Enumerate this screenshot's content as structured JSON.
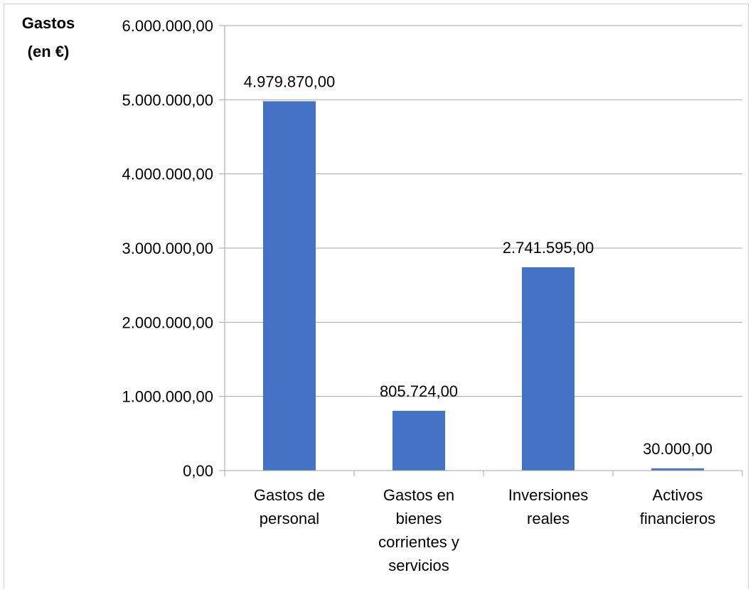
{
  "chart_data": {
    "type": "bar",
    "ylabel_lines": [
      "Gastos",
      "(en €)"
    ],
    "categories": [
      [
        "Gastos de",
        "personal"
      ],
      [
        "Gastos en",
        "bienes",
        "corrientes y",
        "servicios"
      ],
      [
        "Inversiones",
        "reales"
      ],
      [
        "Activos",
        "financieros"
      ]
    ],
    "values": [
      4979870,
      805724,
      2741595,
      30000
    ],
    "data_labels": [
      "4.979.870,00",
      "805.724,00",
      "2.741.595,00",
      "30.000,00"
    ],
    "ylim": [
      0,
      6000000
    ],
    "yticks": [
      0,
      1000000,
      2000000,
      3000000,
      4000000,
      5000000,
      6000000
    ],
    "ytick_labels": [
      "0,00",
      "1.000.000,00",
      "2.000.000,00",
      "3.000.000,00",
      "4.000.000,00",
      "5.000.000,00",
      "6.000.000,00"
    ],
    "grid": true,
    "bar_color": "#4472C4",
    "grid_color": "#a6a6a6"
  }
}
